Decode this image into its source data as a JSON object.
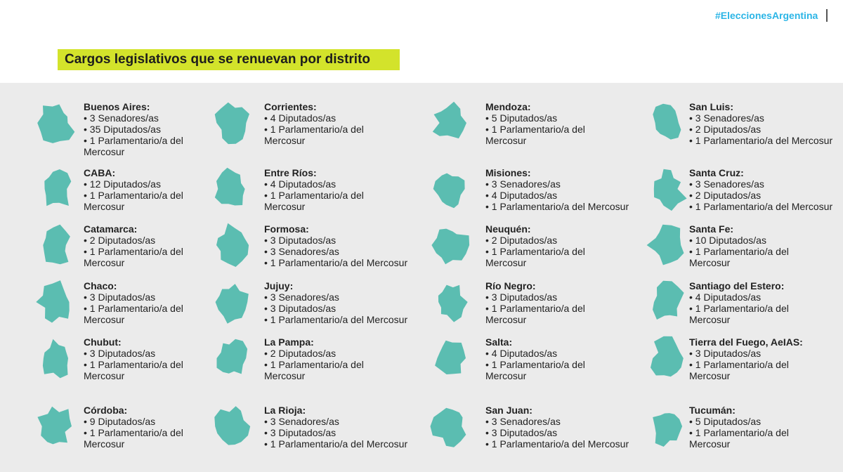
{
  "header": {
    "hashtag": "#EleccionesArgentina",
    "title": "Cargos legislativos que se renuevan por distrito"
  },
  "districts": [
    {
      "name": "Buenos Aires:",
      "items": [
        "• 3 Senadores/as",
        "• 35 Diputados/as",
        "• 1 Parlamentario/a del Mercosur"
      ]
    },
    {
      "name": "CABA:",
      "items": [
        "• 12 Diputados/as",
        "• 1 Parlamentario/a del Mercosur"
      ]
    },
    {
      "name": "Catamarca:",
      "items": [
        "• 2 Diputados/as",
        "• 1 Parlamentario/a del Mercosur"
      ]
    },
    {
      "name": "Chaco:",
      "items": [
        "• 3 Diputados/as",
        "• 1 Parlamentario/a del Mercosur"
      ]
    },
    {
      "name": "Chubut:",
      "items": [
        "• 3 Diputados/as",
        "• 1 Parlamentario/a del Mercosur"
      ]
    },
    {
      "name": "Córdoba:",
      "items": [
        "• 9 Diputados/as",
        "• 1 Parlamentario/a del Mercosur"
      ]
    },
    {
      "name": "Corrientes:",
      "items": [
        "• 4 Diputados/as",
        "• 1 Parlamentario/a del Mercosur"
      ]
    },
    {
      "name": "Entre Ríos:",
      "items": [
        "• 4 Diputados/as",
        "• 1 Parlamentario/a del Mercosur"
      ]
    },
    {
      "name": "Formosa:",
      "items": [
        "• 3 Diputados/as",
        "• 3 Senadores/as",
        "• 1 Parlamentario/a del Mercosur"
      ]
    },
    {
      "name": "Jujuy:",
      "items": [
        "• 3 Senadores/as",
        "• 3 Diputados/as",
        "• 1 Parlamentario/a del Mercosur"
      ]
    },
    {
      "name": "La Pampa:",
      "items": [
        "• 2 Diputados/as",
        "• 1 Parlamentario/a del Mercosur"
      ]
    },
    {
      "name": "La Rioja:",
      "items": [
        "• 3 Senadores/as",
        "• 3 Diputados/as",
        "• 1 Parlamentario/a del Mercosur"
      ]
    },
    {
      "name": "Mendoza:",
      "items": [
        "• 5 Diputados/as",
        "• 1 Parlamentario/a del Mercosur"
      ]
    },
    {
      "name": "Misiones:",
      "items": [
        "• 3 Senadores/as",
        "• 4 Diputados/as",
        "• 1 Parlamentario/a del Mercosur"
      ]
    },
    {
      "name": "Neuquén:",
      "items": [
        "• 2 Diputados/as",
        "• 1 Parlamentario/a del Mercosur"
      ]
    },
    {
      "name": "Río Negro:",
      "items": [
        "• 3 Diputados/as",
        "• 1 Parlamentario/a del Mercosur"
      ]
    },
    {
      "name": "Salta:",
      "items": [
        "• 4 Diputados/as",
        "• 1 Parlamentario/a del Mercosur"
      ]
    },
    {
      "name": "San Juan:",
      "items": [
        "• 3 Senadores/as",
        "• 3 Diputados/as",
        "• 1 Parlamentario/a del Mercosur"
      ]
    },
    {
      "name": "San Luis:",
      "items": [
        "• 3 Senadores/as",
        "• 2 Diputados/as",
        "• 1 Parlamentario/a del Mercosur"
      ]
    },
    {
      "name": "Santa Cruz:",
      "items": [
        "• 3 Senadores/as",
        "• 2 Diputados/as",
        "• 1 Parlamentario/a del Mercosur"
      ]
    },
    {
      "name": "Santa Fe:",
      "items": [
        "• 10 Diputados/as",
        "• 1 Parlamentario/a del Mercosur"
      ]
    },
    {
      "name": "Santiago del Estero:",
      "items": [
        "• 4 Diputados/as",
        "• 1 Parlamentario/a del Mercosur"
      ]
    },
    {
      "name": "Tierra del Fuego, AeIAS:",
      "items": [
        "• 3 Diputados/as",
        "• 1 Parlamentario/a del Mercosur"
      ]
    },
    {
      "name": "Tucumán:",
      "items": [
        "• 5 Diputados/as",
        "• 1 Parlamentario/a del Mercosur"
      ]
    }
  ]
}
